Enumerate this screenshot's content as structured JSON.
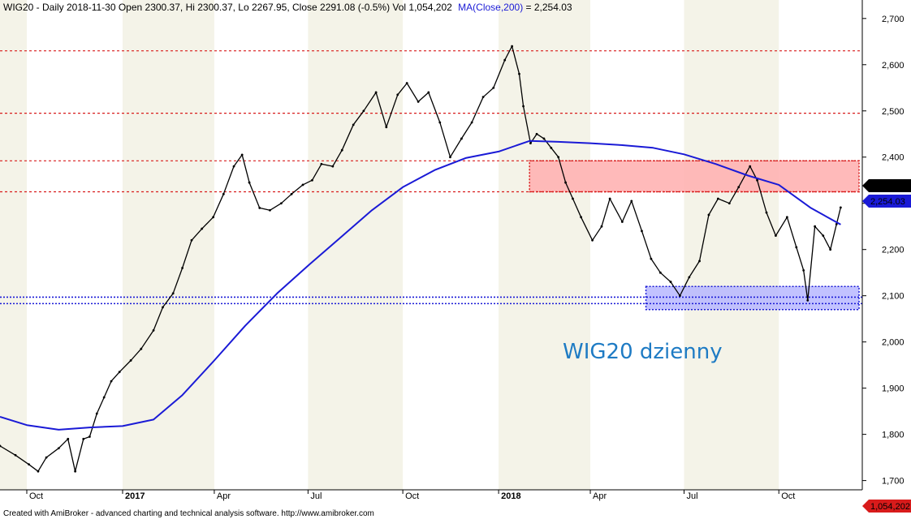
{
  "header": {
    "ticker": "WIG20",
    "info": "WIG20 - Daily 2018-11-30 Open 2300.37, Hi 2300.37, Lo 2267.95, Close 2291.08 (-0.5%) Vol 1,054,202",
    "ma_label": "MA(Close,200)",
    "ma_value": " = 2,254.03"
  },
  "footer": {
    "text": "Created with AmiBroker - advanced charting and technical analysis software. http://www.amibroker.com"
  },
  "annotation": "WIG20 dzienny",
  "badges": {
    "close": "2,291.08",
    "ma": "2,254.03",
    "volume": "1,054,202"
  },
  "colors": {
    "price": "#000000",
    "ma": "#1a1ad6",
    "resistance": "#d81b1b",
    "support": "#1a1ad6",
    "resistance_zone": "#ffb3b3",
    "support_zone": "#b3b3ff",
    "band": "#f4f3e8",
    "annotation": "#1e7bc4"
  },
  "chart_data": {
    "type": "line",
    "ylim": [
      1680,
      2740
    ],
    "y_ticks": [
      "2,700",
      "2,600",
      "2,500",
      "2,400",
      "2,300",
      "2,200",
      "2,100",
      "2,000",
      "1,900",
      "1,800",
      "1,700"
    ],
    "y_tick_values": [
      2700,
      2600,
      2500,
      2400,
      2300,
      2200,
      2100,
      2000,
      1900,
      1800,
      1700
    ],
    "x_range": [
      "2016-09-05",
      "2018-12-21"
    ],
    "x_ticks": [
      {
        "label": "Oct",
        "date": "2016-10-01",
        "bold": false
      },
      {
        "label": "2017",
        "date": "2017-01-02",
        "bold": true
      },
      {
        "label": "Apr",
        "date": "2017-04-01",
        "bold": false
      },
      {
        "label": "Jul",
        "date": "2017-07-01",
        "bold": false
      },
      {
        "label": "Oct",
        "date": "2017-10-01",
        "bold": false
      },
      {
        "label": "2018",
        "date": "2018-01-02",
        "bold": true
      },
      {
        "label": "Apr",
        "date": "2018-04-01",
        "bold": false
      },
      {
        "label": "Jul",
        "date": "2018-07-01",
        "bold": false
      },
      {
        "label": "Oct",
        "date": "2018-10-01",
        "bold": false
      }
    ],
    "shaded_quarters": [
      [
        "2016-09-05",
        "2016-10-01"
      ],
      [
        "2017-01-02",
        "2017-04-01"
      ],
      [
        "2017-07-01",
        "2017-10-01"
      ],
      [
        "2018-01-02",
        "2018-04-01"
      ],
      [
        "2018-07-01",
        "2018-10-01"
      ]
    ],
    "series": [
      {
        "name": "WIG20",
        "dates": [
          "2016-09-05",
          "2016-09-20",
          "2016-10-03",
          "2016-10-12",
          "2016-10-20",
          "2016-11-01",
          "2016-11-10",
          "2016-11-17",
          "2016-11-25",
          "2016-12-01",
          "2016-12-08",
          "2016-12-15",
          "2016-12-22",
          "2016-12-30",
          "2017-01-10",
          "2017-01-20",
          "2017-02-01",
          "2017-02-10",
          "2017-02-20",
          "2017-03-01",
          "2017-03-10",
          "2017-03-20",
          "2017-03-31",
          "2017-04-10",
          "2017-04-20",
          "2017-04-28",
          "2017-05-05",
          "2017-05-15",
          "2017-05-25",
          "2017-06-05",
          "2017-06-15",
          "2017-06-26",
          "2017-07-05",
          "2017-07-14",
          "2017-07-25",
          "2017-08-03",
          "2017-08-14",
          "2017-08-24",
          "2017-09-05",
          "2017-09-15",
          "2017-09-26",
          "2017-10-05",
          "2017-10-16",
          "2017-10-26",
          "2017-11-06",
          "2017-11-16",
          "2017-11-27",
          "2017-12-07",
          "2017-12-18",
          "2017-12-28",
          "2018-01-08",
          "2018-01-15",
          "2018-01-22",
          "2018-01-26",
          "2018-02-02",
          "2018-02-08",
          "2018-02-15",
          "2018-02-22",
          "2018-03-01",
          "2018-03-08",
          "2018-03-15",
          "2018-03-23",
          "2018-04-03",
          "2018-04-12",
          "2018-04-20",
          "2018-05-02",
          "2018-05-11",
          "2018-05-21",
          "2018-05-30",
          "2018-06-08",
          "2018-06-18",
          "2018-06-27",
          "2018-07-06",
          "2018-07-16",
          "2018-07-25",
          "2018-08-03",
          "2018-08-14",
          "2018-08-23",
          "2018-09-03",
          "2018-09-10",
          "2018-09-19",
          "2018-09-28",
          "2018-10-09",
          "2018-10-18",
          "2018-10-25",
          "2018-10-29",
          "2018-11-05",
          "2018-11-13",
          "2018-11-20",
          "2018-11-26",
          "2018-11-30"
        ],
        "values": [
          1775,
          1755,
          1735,
          1720,
          1750,
          1770,
          1790,
          1720,
          1790,
          1795,
          1845,
          1880,
          1915,
          1935,
          1960,
          1985,
          2025,
          2075,
          2105,
          2160,
          2220,
          2245,
          2270,
          2320,
          2380,
          2405,
          2345,
          2290,
          2285,
          2300,
          2320,
          2340,
          2350,
          2385,
          2380,
          2415,
          2470,
          2500,
          2540,
          2465,
          2535,
          2560,
          2520,
          2540,
          2475,
          2400,
          2440,
          2475,
          2530,
          2550,
          2610,
          2640,
          2580,
          2510,
          2430,
          2450,
          2440,
          2420,
          2400,
          2345,
          2310,
          2270,
          2220,
          2250,
          2310,
          2260,
          2305,
          2240,
          2180,
          2150,
          2130,
          2100,
          2140,
          2175,
          2275,
          2310,
          2300,
          2335,
          2380,
          2350,
          2280,
          2230,
          2270,
          2205,
          2155,
          2090,
          2250,
          2230,
          2200,
          2255,
          2291
        ]
      },
      {
        "name": "MA(Close,200)",
        "dates": [
          "2016-09-05",
          "2016-10-01",
          "2016-11-01",
          "2016-12-01",
          "2017-01-02",
          "2017-02-01",
          "2017-03-01",
          "2017-04-01",
          "2017-05-01",
          "2017-06-01",
          "2017-07-01",
          "2017-08-01",
          "2017-09-01",
          "2017-10-01",
          "2017-11-01",
          "2017-12-01",
          "2018-01-02",
          "2018-02-01",
          "2018-03-01",
          "2018-04-01",
          "2018-05-01",
          "2018-06-01",
          "2018-07-01",
          "2018-08-01",
          "2018-09-01",
          "2018-10-01",
          "2018-11-01",
          "2018-11-30"
        ],
        "values": [
          1838,
          1820,
          1810,
          1815,
          1818,
          1832,
          1885,
          1960,
          2035,
          2105,
          2165,
          2225,
          2285,
          2335,
          2372,
          2398,
          2412,
          2435,
          2433,
          2430,
          2426,
          2420,
          2406,
          2385,
          2360,
          2340,
          2290,
          2254
        ]
      }
    ],
    "levels": {
      "resistance": [
        2630,
        2495,
        2392,
        2325
      ],
      "support": [
        2097,
        2083
      ]
    },
    "zones": [
      {
        "name": "resistance-zone",
        "from": "2018-02-01",
        "to": "2018-12-21",
        "low": 2325,
        "high": 2392
      },
      {
        "name": "support-zone",
        "from": "2018-05-25",
        "to": "2018-12-21",
        "low": 2070,
        "high": 2120
      }
    ]
  }
}
